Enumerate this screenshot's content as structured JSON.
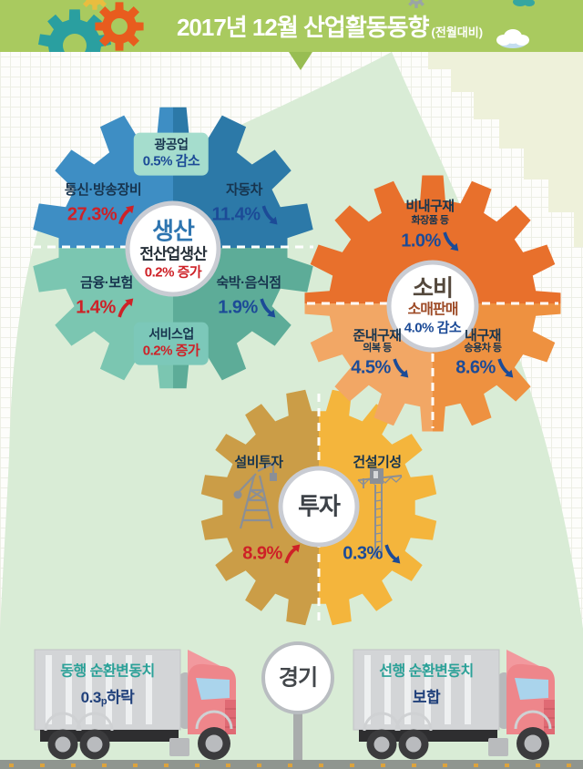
{
  "header": {
    "title": "2017년 12월 산업활동동향",
    "period_note": "(전월대비)"
  },
  "production": {
    "center_title": "생산",
    "center_label": "전산업생산",
    "center_value": "0.2% 증가",
    "mining_label": "광공업",
    "mining_value": "0.5% 감소",
    "service_label": "서비스업",
    "service_value": "0.2% 증가",
    "telecom_label": "통신·방송장비",
    "telecom_value": "27.3%",
    "telecom_direction": "up",
    "auto_label": "자동차",
    "auto_value": "11.4%",
    "auto_direction": "down",
    "finance_label": "금융·보험",
    "finance_value": "1.4%",
    "finance_direction": "up",
    "food_label": "숙박·음식점",
    "food_value": "1.9%",
    "food_direction": "down"
  },
  "consumption": {
    "center_title": "소비",
    "center_label": "소매판매",
    "center_value": "4.0% 감소",
    "nondurable_label": "비내구재",
    "nondurable_sub": "화장품 등",
    "nondurable_value": "1.0%",
    "nondurable_direction": "down",
    "semidurable_label": "준내구재",
    "semidurable_sub": "의복 등",
    "semidurable_value": "4.5%",
    "semidurable_direction": "down",
    "durable_label": "내구재",
    "durable_sub": "승용차 등",
    "durable_value": "8.6%",
    "durable_direction": "down"
  },
  "investment": {
    "center_title": "투자",
    "facility_label": "설비투자",
    "facility_value": "8.9%",
    "facility_direction": "up",
    "construction_label": "건설기성",
    "construction_value": "0.3%",
    "construction_direction": "down"
  },
  "economy": {
    "sign_label": "경기",
    "coincident_label": "동행 순환변동치",
    "coincident_value": "0.3",
    "coincident_unit": "p",
    "coincident_state": "하락",
    "leading_label": "선행 순환변동치",
    "leading_state": "보합"
  },
  "icons": {
    "up_trend": "up-arrow-icon",
    "down_trend": "down-arrow-icon",
    "facility": "oil-derrick-icon",
    "construction": "tower-crane-icon",
    "cloud": "cloud-icon",
    "economy_sign": "sign-circle"
  },
  "colors": {
    "header_bg": "#a9ca5f",
    "header_pointer": "#98bd52",
    "grid_line": "#edefe5",
    "mountain_green": "#d9ecd6",
    "mountain_yellow": "#eef1da",
    "production_top_left": "#3e8ec4",
    "production_top_right": "#2c79a8",
    "production_bottom_left": "#7bc6b1",
    "production_bottom_right": "#5dac98",
    "production_title": "#2e75b0",
    "center_dark": "#252f38",
    "box_mining_bg": "#a5ddcd",
    "box_service_bg": "#7cc8b9",
    "consumption_top": "#e8702c",
    "consumption_bottom_left": "#f2a765",
    "consumption_bottom_right": "#ee9140",
    "consumption_title": "#54483c",
    "consumption_sub": "#9d4a26",
    "investment_left": "#cb9d47",
    "investment_right": "#f4b53c",
    "investment_title": "#3d4248",
    "label_navy": "#17344e",
    "increase_red": "#ce2127",
    "decrease_blue": "#1c4b97",
    "circle_ring": "#c9ccd3",
    "gear_teal": "#2a9fa0",
    "gear_orange": "#e85c1e",
    "gear_yellow": "#e9bd3f",
    "gear_gray": "#9aa5a5",
    "icon_gray": "#8b8f96",
    "truck_body": "#ee868b",
    "truck_body_light": "#f2999e",
    "truck_dark": "#e06a74",
    "truck_box": "#d3d5d7",
    "truck_stripe": "#eef0f1",
    "truck_window": "#aad4ec",
    "truck_chassis": "#2e2e30",
    "wheel_dark": "#3b3b3d",
    "wheel_rim": "#b9bbbe",
    "teal_text": "#2ba198",
    "navy_text": "#21417b",
    "sign_text": "#43474b",
    "pole_gray": "#a9acac",
    "road": "#8f958f",
    "road_dash": "#dca33e"
  }
}
